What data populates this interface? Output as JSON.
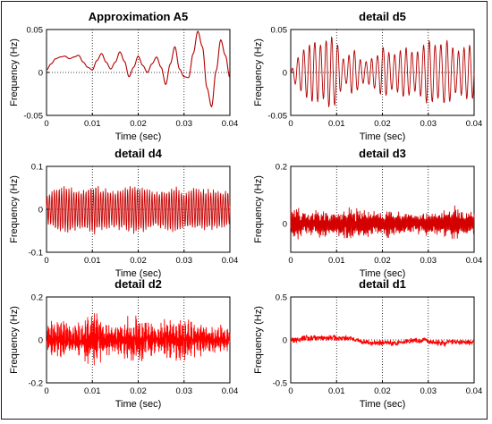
{
  "chart_data": [
    {
      "type": "line",
      "title": "Approximation A5",
      "xlabel": "Time (sec)",
      "ylabel": "Frequency (Hz)",
      "xlim": [
        0,
        0.04
      ],
      "ylim": [
        -0.05,
        0.05
      ],
      "xticks": [
        "0",
        "0.01",
        "0.02",
        "0.03",
        "0.04"
      ],
      "yticks": [
        "-0.05",
        "0",
        "0.05"
      ],
      "grid": "vertical dotted",
      "line_color": "#b30000",
      "series": [
        {
          "x": [
            0,
            0.001,
            0.002,
            0.003,
            0.004,
            0.005,
            0.006,
            0.007,
            0.008,
            0.009,
            0.01,
            0.011,
            0.012,
            0.013,
            0.014,
            0.015,
            0.016,
            0.017,
            0.018,
            0.019,
            0.02,
            0.021,
            0.022,
            0.023,
            0.024,
            0.025,
            0.026,
            0.027,
            0.028,
            0.029,
            0.03,
            0.031,
            0.032,
            0.033,
            0.034,
            0.035,
            0.036,
            0.037,
            0.038,
            0.039,
            0.04
          ],
          "values": [
            0.003,
            0.01,
            0.016,
            0.018,
            0.019,
            0.016,
            0.018,
            0.02,
            0.012,
            0.006,
            0.003,
            0.014,
            0.022,
            0.012,
            0.004,
            0.012,
            0.024,
            0.013,
            -0.005,
            0.006,
            0.019,
            0.008,
            0.0,
            0.01,
            0.018,
            0.006,
            -0.014,
            0.01,
            0.03,
            0.004,
            -0.005,
            -0.006,
            0.022,
            0.048,
            0.03,
            -0.018,
            -0.04,
            0.002,
            0.038,
            0.02,
            -0.006
          ]
        }
      ]
    },
    {
      "type": "line",
      "title": "detail d5",
      "xlabel": "Time (sec)",
      "ylabel": "Frequency (Hz)",
      "xlim": [
        0,
        0.04
      ],
      "ylim": [
        -0.05,
        0.05
      ],
      "xticks": [
        "0",
        "0.01",
        "0.02",
        "0.03",
        "0.04"
      ],
      "yticks": [
        "-0.05",
        "0",
        "0.05"
      ],
      "grid": "vertical dotted",
      "line_color": "#b30000",
      "series": [
        {
          "x": [
            0,
            0.001,
            0.002,
            0.003,
            0.004,
            0.005,
            0.006,
            0.007,
            0.008,
            0.009,
            0.01,
            0.011,
            0.012,
            0.013,
            0.014,
            0.015,
            0.016,
            0.017,
            0.018,
            0.019,
            0.02,
            0.021,
            0.022,
            0.023,
            0.024,
            0.025,
            0.026,
            0.027,
            0.028,
            0.029,
            0.03,
            0.031,
            0.032,
            0.033,
            0.034,
            0.035,
            0.036,
            0.037,
            0.038,
            0.039,
            0.04
          ],
          "values": [
            0.0,
            0.014,
            0.02,
            0.028,
            0.032,
            0.036,
            0.034,
            0.03,
            0.04,
            0.042,
            0.036,
            0.02,
            0.012,
            0.024,
            0.026,
            0.016,
            0.012,
            0.014,
            0.018,
            0.02,
            0.03,
            0.026,
            0.02,
            0.022,
            0.026,
            0.03,
            0.026,
            0.022,
            0.026,
            0.032,
            0.038,
            0.034,
            0.03,
            0.034,
            0.038,
            0.032,
            0.024,
            0.026,
            0.03,
            0.032,
            0.03
          ]
        }
      ]
    },
    {
      "type": "line",
      "title": "detail d4",
      "xlabel": "Time (sec)",
      "ylabel": "Frequency (Hz)",
      "xlim": [
        0,
        0.04
      ],
      "ylim": [
        -0.1,
        0.1
      ],
      "xticks": [
        "0",
        "0.01",
        "0.02",
        "0.03",
        "0.04"
      ],
      "yticks": [
        "-0.1",
        "0",
        "0.1"
      ],
      "grid": "vertical dotted",
      "line_color": "#c80000",
      "series": [
        {
          "x": [
            0,
            0.002,
            0.004,
            0.006,
            0.008,
            0.01,
            0.012,
            0.014,
            0.016,
            0.018,
            0.02,
            0.022,
            0.024,
            0.026,
            0.028,
            0.03,
            0.032,
            0.034,
            0.036,
            0.038,
            0.04
          ],
          "values": [
            0.04,
            0.05,
            0.058,
            0.05,
            0.046,
            0.06,
            0.052,
            0.044,
            0.05,
            0.056,
            0.06,
            0.048,
            0.044,
            0.05,
            0.054,
            0.046,
            0.052,
            0.048,
            0.05,
            0.046,
            0.044
          ]
        }
      ]
    },
    {
      "type": "line",
      "title": "detail d3",
      "xlabel": "Time (sec)",
      "ylabel": "Frequency (Hz)",
      "xlim": [
        0,
        0.04
      ],
      "ylim": [
        -0.1,
        0.2
      ],
      "xticks": [
        "0",
        "0.01",
        "0.02",
        "0.03",
        "0.04"
      ],
      "yticks": [
        "0",
        "0.2"
      ],
      "grid": "vertical dotted",
      "line_color": "#d40000",
      "series": [
        {
          "x": [
            0,
            0.002,
            0.004,
            0.006,
            0.008,
            0.01,
            0.012,
            0.014,
            0.016,
            0.018,
            0.02,
            0.022,
            0.024,
            0.026,
            0.028,
            0.03,
            0.032,
            0.034,
            0.036,
            0.038,
            0.04
          ],
          "values": [
            0.06,
            0.04,
            0.036,
            0.044,
            0.04,
            0.036,
            0.046,
            0.052,
            0.046,
            0.04,
            0.038,
            0.044,
            0.04,
            0.036,
            0.03,
            0.034,
            0.042,
            0.046,
            0.05,
            0.044,
            0.04
          ]
        }
      ]
    },
    {
      "type": "line",
      "title": "detail d2",
      "xlabel": "Time (sec)",
      "ylabel": "Frequency (Hz)",
      "xlim": [
        0,
        0.04
      ],
      "ylim": [
        -0.2,
        0.2
      ],
      "xticks": [
        "0",
        "0.01",
        "0.02",
        "0.03",
        "0.04"
      ],
      "yticks": [
        "-0.2",
        "0",
        "0.2"
      ],
      "grid": "vertical dotted",
      "line_color": "#ff0000",
      "series": [
        {
          "x": [
            0,
            0.002,
            0.004,
            0.006,
            0.008,
            0.01,
            0.012,
            0.014,
            0.016,
            0.018,
            0.02,
            0.022,
            0.024,
            0.026,
            0.028,
            0.03,
            0.032,
            0.034,
            0.036,
            0.038,
            0.04
          ],
          "values": [
            0.06,
            0.08,
            0.09,
            0.07,
            0.08,
            0.13,
            0.08,
            0.06,
            0.07,
            0.09,
            0.1,
            0.07,
            0.06,
            0.08,
            0.07,
            0.11,
            0.07,
            0.06,
            0.05,
            0.06,
            0.05
          ]
        }
      ]
    },
    {
      "type": "line",
      "title": "detail d1",
      "xlabel": "Time (sec)",
      "ylabel": "Frequency (Hz)",
      "xlim": [
        0,
        0.04
      ],
      "ylim": [
        -0.5,
        0.5
      ],
      "xticks": [
        "0",
        "0.01",
        "0.02",
        "0.03",
        "0.04"
      ],
      "yticks": [
        "-0.5",
        "0",
        "0.5"
      ],
      "grid": "vertical dotted",
      "line_color": "#ff0000",
      "series": [
        {
          "x": [
            0,
            0.002,
            0.004,
            0.006,
            0.008,
            0.01,
            0.012,
            0.014,
            0.016,
            0.018,
            0.02,
            0.022,
            0.024,
            0.026,
            0.028,
            0.03,
            0.032,
            0.034,
            0.036,
            0.038,
            0.04
          ],
          "values": [
            0.08,
            0.07,
            0.08,
            0.06,
            0.07,
            0.08,
            0.07,
            0.06,
            0.07,
            0.08,
            0.06,
            0.07,
            0.06,
            0.07,
            0.08,
            0.06,
            0.07,
            0.08,
            0.06,
            0.07,
            0.06
          ]
        }
      ]
    }
  ]
}
